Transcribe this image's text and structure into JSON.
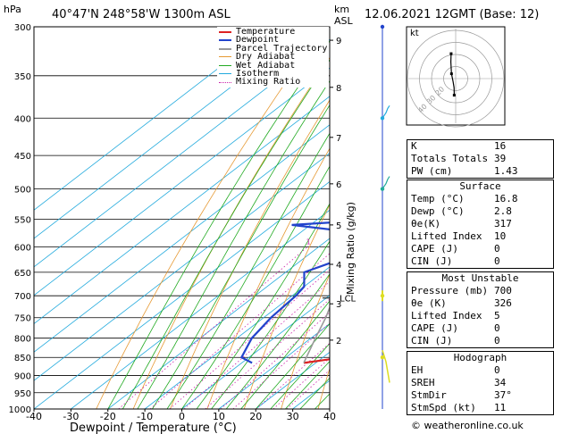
{
  "header": {
    "hpa_label": "hPa",
    "location": "40°47'N  248°58'W  1300m  ASL",
    "km_label": "km",
    "asl_label": "ASL",
    "datetime": "12.06.2021  12GMT  (Base: 12)"
  },
  "legend": [
    {
      "label": "Temperature",
      "color": "#dd2222"
    },
    {
      "label": "Dewpoint",
      "color": "#2244cc"
    },
    {
      "label": "Parcel Trajectory",
      "color": "#999999"
    },
    {
      "label": "Dry Adiabat",
      "color": "#e69933"
    },
    {
      "label": "Wet Adiabat",
      "color": "#22aa22"
    },
    {
      "label": "Isotherm",
      "color": "#22aadd"
    },
    {
      "label": "Mixing Ratio",
      "color": "#cc22aa"
    }
  ],
  "chart_data": {
    "type": "line",
    "title": "Skew-T log-P sounding",
    "xlabel": "Dewpoint / Temperature (°C)",
    "ylabel": "hPa",
    "xlim": [
      -40,
      40
    ],
    "ylim": [
      1000,
      300
    ],
    "pressure_ticks": [
      300,
      350,
      400,
      450,
      500,
      550,
      600,
      650,
      700,
      750,
      800,
      850,
      900,
      950,
      1000
    ],
    "temp_ticks": [
      -40,
      -30,
      -20,
      -10,
      0,
      10,
      20,
      30,
      40
    ],
    "temp_tick_labels": [
      "-40",
      "-30",
      "-20",
      "-10",
      "0",
      "10",
      "20",
      "30",
      "40"
    ],
    "km_ticks": [
      {
        "label": "9",
        "p": 313
      },
      {
        "label": "8",
        "p": 363
      },
      {
        "label": "7",
        "p": 425
      },
      {
        "label": "6",
        "p": 492
      },
      {
        "label": "5",
        "p": 560
      },
      {
        "label": "4",
        "p": 634
      },
      {
        "label": "3",
        "p": 718
      },
      {
        "label": "2",
        "p": 805
      }
    ],
    "mixing_ratio_axis_label": "Mixing Ratio (g/kg)",
    "mixing_ratios": [
      {
        "label": "1",
        "w": 1
      },
      {
        "label": "2",
        "w": 2
      },
      {
        "label": "3",
        "w": 3
      },
      {
        "label": "4",
        "w": 4
      },
      {
        "label": "6",
        "w": 6
      },
      {
        "label": "8",
        "w": 8
      },
      {
        "label": "10",
        "w": 10
      },
      {
        "label": "15",
        "w": 15
      },
      {
        "label": "20",
        "w": 20
      },
      {
        "label": "25",
        "w": 25
      }
    ],
    "lcl_label": "LCL",
    "lcl_pressure": 705,
    "series": [
      {
        "name": "Temperature",
        "points": [
          {
            "p": 865,
            "t": 16.8
          },
          {
            "p": 850,
            "t": 25.5
          },
          {
            "p": 800,
            "t": 25.0
          },
          {
            "p": 750,
            "t": 20.0
          },
          {
            "p": 700,
            "t": 14.5
          },
          {
            "p": 650,
            "t": 9.5
          },
          {
            "p": 600,
            "t": 5.0
          },
          {
            "p": 550,
            "t": 0.0
          },
          {
            "p": 500,
            "t": -4.0
          },
          {
            "p": 450,
            "t": -9.5
          },
          {
            "p": 400,
            "t": -16.0
          },
          {
            "p": 350,
            "t": -23.5
          },
          {
            "p": 300,
            "t": -33.0
          }
        ]
      },
      {
        "name": "Dewpoint",
        "points": [
          {
            "p": 865,
            "t": 2.8
          },
          {
            "p": 850,
            "t": -2.0
          },
          {
            "p": 800,
            "t": -6.0
          },
          {
            "p": 750,
            "t": -8.0
          },
          {
            "p": 700,
            "t": -9.0
          },
          {
            "p": 680,
            "t": -10.0
          },
          {
            "p": 650,
            "t": -15.0
          },
          {
            "p": 620,
            "t": -9.0
          },
          {
            "p": 600,
            "t": -11.0
          },
          {
            "p": 570,
            "t": -20.0
          },
          {
            "p": 560,
            "t": -35.0
          },
          {
            "p": 545,
            "t": -0.5
          },
          {
            "p": 500,
            "t": -8.0
          },
          {
            "p": 450,
            "t": -17.0
          },
          {
            "p": 420,
            "t": -20.0
          },
          {
            "p": 400,
            "t": -22.0
          },
          {
            "p": 350,
            "t": -30.0
          },
          {
            "p": 320,
            "t": -34.0
          },
          {
            "p": 315,
            "t": -55.0
          },
          {
            "p": 300,
            "t": -64.0
          }
        ]
      },
      {
        "name": "Parcel Trajectory",
        "points": [
          {
            "p": 865,
            "t": 16.8
          },
          {
            "p": 800,
            "t": 11.2
          },
          {
            "p": 750,
            "t": 6.8
          },
          {
            "p": 705,
            "t": 2.0
          },
          {
            "p": 650,
            "t": -2.0
          },
          {
            "p": 600,
            "t": -6.2
          },
          {
            "p": 550,
            "t": -10.5
          },
          {
            "p": 500,
            "t": -15.5
          },
          {
            "p": 450,
            "t": -21.5
          },
          {
            "p": 400,
            "t": -28.5
          },
          {
            "p": 350,
            "t": -36.5
          },
          {
            "p": 300,
            "t": -46.0
          }
        ]
      }
    ]
  },
  "hodograph": {
    "unit_label": "kt",
    "ring_labels": [
      "20",
      "30",
      "40"
    ],
    "points": [
      {
        "dir": 160,
        "spd": 22
      },
      {
        "dir": 150,
        "spd": 16
      },
      {
        "dir": 120,
        "spd": 8
      },
      {
        "dir": 60,
        "spd": 5
      },
      {
        "dir": 20,
        "spd": 8
      },
      {
        "dir": 10,
        "spd": 14
      }
    ]
  },
  "indices": [
    {
      "label": "K",
      "value": "16"
    },
    {
      "label": "Totals Totals",
      "value": "39"
    },
    {
      "label": "PW (cm)",
      "value": "1.43"
    }
  ],
  "surface": {
    "title": "Surface",
    "rows": [
      {
        "label": "Temp (°C)",
        "value": "16.8"
      },
      {
        "label": "Dewp (°C)",
        "value": "2.8"
      },
      {
        "label": "θe(K)",
        "value": "317"
      },
      {
        "label": "Lifted Index",
        "value": "10"
      },
      {
        "label": "CAPE (J)",
        "value": "0"
      },
      {
        "label": "CIN (J)",
        "value": "0"
      }
    ]
  },
  "most_unstable": {
    "title": "Most Unstable",
    "rows": [
      {
        "label": "Pressure (mb)",
        "value": "700"
      },
      {
        "label": "θe (K)",
        "value": "326"
      },
      {
        "label": "Lifted Index",
        "value": "5"
      },
      {
        "label": "CAPE (J)",
        "value": "0"
      },
      {
        "label": "CIN (J)",
        "value": "0"
      }
    ]
  },
  "hodograph_table": {
    "title": "Hodograph",
    "rows": [
      {
        "label": "EH",
        "value": "0"
      },
      {
        "label": "SREH",
        "value": "34"
      },
      {
        "label": "StmDir",
        "value": "37°"
      },
      {
        "label": "StmSpd (kt)",
        "value": "11"
      }
    ]
  },
  "credit": "© weatheronline.co.uk"
}
